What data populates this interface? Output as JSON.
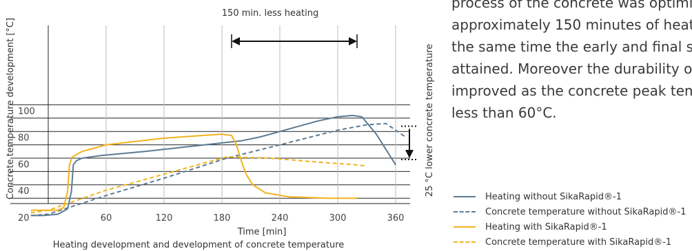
{
  "paragraph_lines": [
    "process of the concrete was optimi",
    "approximately 150 minutes of heat",
    "the same time the early and final st",
    "attained. Moreover the durability o",
    "improved as the concrete peak tem",
    "less than 60°C."
  ],
  "colors": {
    "blue": "#5b7a93",
    "orange": "#f2b21b",
    "grid": "#222222",
    "grid_light": "#bbbbbb"
  },
  "chart_data": {
    "type": "line",
    "title": "",
    "caption": "Heating development and development of concrete temperature",
    "xlabel": "Time [min]",
    "ylabel": "Concrete temperature development [°C]",
    "xlim": [
      0,
      360
    ],
    "ylim": [
      10,
      115
    ],
    "x_ticks": [
      60,
      120,
      180,
      240,
      300,
      360
    ],
    "y_ticks": [
      20,
      40,
      60,
      80,
      100
    ],
    "grid": true,
    "legend_position": "bottom-right",
    "series": [
      {
        "name": "Heating without SikaRapid®-1",
        "color": "#5b7a93",
        "dash": "solid",
        "points": [
          [
            -18,
            27
          ],
          [
            -5,
            27
          ],
          [
            10,
            28
          ],
          [
            20,
            32
          ],
          [
            24,
            45
          ],
          [
            26,
            65
          ],
          [
            29,
            68
          ],
          [
            35,
            70
          ],
          [
            55,
            72
          ],
          [
            100,
            75
          ],
          [
            150,
            79
          ],
          [
            200,
            83
          ],
          [
            220,
            86
          ],
          [
            250,
            92
          ],
          [
            280,
            98
          ],
          [
            300,
            101
          ],
          [
            315,
            102
          ],
          [
            325,
            101
          ],
          [
            340,
            88
          ],
          [
            360,
            65
          ]
        ]
      },
      {
        "name": "Concrete temperature without SikaRapid®-1",
        "color": "#5b7a93",
        "dash": "dashed",
        "points": [
          [
            -18,
            27
          ],
          [
            0,
            28
          ],
          [
            60,
            42
          ],
          [
            120,
            55
          ],
          [
            185,
            70
          ],
          [
            240,
            80
          ],
          [
            300,
            91
          ],
          [
            330,
            95
          ],
          [
            350,
            96
          ],
          [
            370,
            86
          ]
        ]
      },
      {
        "name": "Heating with SikaRapid®-1",
        "color": "#f2b21b",
        "dash": "solid",
        "points": [
          [
            -18,
            31
          ],
          [
            -5,
            31
          ],
          [
            10,
            31
          ],
          [
            16,
            33
          ],
          [
            20,
            45
          ],
          [
            22,
            65
          ],
          [
            25,
            71
          ],
          [
            35,
            75
          ],
          [
            60,
            80
          ],
          [
            120,
            85
          ],
          [
            160,
            87
          ],
          [
            180,
            88
          ],
          [
            190,
            87
          ],
          [
            195,
            80
          ],
          [
            200,
            68
          ],
          [
            205,
            58
          ],
          [
            212,
            50
          ],
          [
            225,
            44
          ],
          [
            250,
            41
          ],
          [
            290,
            40
          ],
          [
            320,
            40
          ]
        ]
      },
      {
        "name": "Concrete temperature with SikaRapid®-1",
        "color": "#f2b21b",
        "dash": "dashed",
        "points": [
          [
            -18,
            29
          ],
          [
            0,
            31
          ],
          [
            60,
            46
          ],
          [
            120,
            58
          ],
          [
            185,
            71
          ],
          [
            230,
            70
          ],
          [
            280,
            67
          ],
          [
            320,
            65
          ],
          [
            330,
            64
          ]
        ]
      }
    ],
    "annotations": [
      {
        "text": "150 min. less heating",
        "type": "span-arrow",
        "x_from": 190,
        "x_to": 320
      },
      {
        "text": "25 °C lower concrete temperature",
        "type": "vertical-arrow",
        "y_from": 94,
        "y_to": 69
      }
    ]
  }
}
